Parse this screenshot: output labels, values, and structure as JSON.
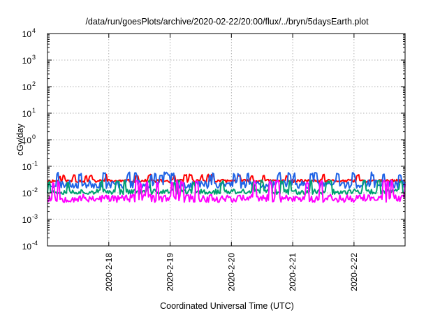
{
  "chart_data": {
    "type": "line",
    "title": "/data/run/goesPlots/archive/2020-02-22/20:00/flux/../bryn/5daysEarth.plot",
    "xlabel": "Coordinated Universal Time (UTC)",
    "ylabel": "cGy/day",
    "yscale": "log",
    "ylim": [
      0.0001,
      10000
    ],
    "y_ticks": [
      {
        "base": "10",
        "exp": "-4",
        "value": 0.0001
      },
      {
        "base": "10",
        "exp": "-3",
        "value": 0.001
      },
      {
        "base": "10",
        "exp": "-2",
        "value": 0.01
      },
      {
        "base": "10",
        "exp": "-1",
        "value": 0.1
      },
      {
        "base": "10",
        "exp": "0",
        "value": 1
      },
      {
        "base": "10",
        "exp": "1",
        "value": 10
      },
      {
        "base": "10",
        "exp": "2",
        "value": 100
      },
      {
        "base": "10",
        "exp": "3",
        "value": 1000
      },
      {
        "base": "10",
        "exp": "4",
        "value": 10000
      }
    ],
    "xlim": [
      "2020-02-17 00:00",
      "2020-02-22 20:00"
    ],
    "x_ticks": [
      {
        "label": "2020-2-18",
        "value": "2020-02-18 00:00"
      },
      {
        "label": "2020-2-19",
        "value": "2020-02-19 00:00"
      },
      {
        "label": "2020-2-20",
        "value": "2020-02-20 00:00"
      },
      {
        "label": "2020-2-21",
        "value": "2020-02-21 00:00"
      },
      {
        "label": "2020-2-22",
        "value": "2020-02-22 00:00"
      }
    ],
    "grid": true,
    "series": [
      {
        "color": "#ff0000",
        "base": 0.028,
        "spike": 0.05,
        "noise": 0.12,
        "seed": 11
      },
      {
        "color": "#1f63e6",
        "base": 0.021,
        "spike": 0.06,
        "noise": 0.3,
        "seed": 23
      },
      {
        "color": "#00a070",
        "base": 0.011,
        "spike": 0.03,
        "noise": 0.2,
        "seed": 37
      },
      {
        "color": "#ff00ff",
        "base": 0.0062,
        "spike": 0.03,
        "noise": 0.3,
        "seed": 53
      }
    ]
  }
}
